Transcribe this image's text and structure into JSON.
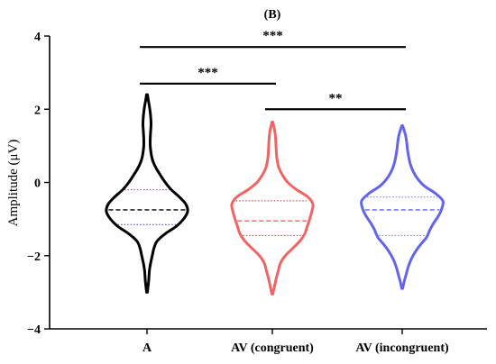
{
  "chart_data": {
    "type": "violin",
    "panel_label": "(B)",
    "ylabel": "Amplitude (μV)",
    "ylim": [
      -4,
      4
    ],
    "yticks": [
      -4,
      -2,
      0,
      2,
      4
    ],
    "categories": [
      "A",
      "AV (congruent)",
      "AV (incongruent)"
    ],
    "series": [
      {
        "color": "#000000",
        "min": -3.0,
        "max": 2.4,
        "q1": -1.15,
        "median": -0.75,
        "q3": -0.2,
        "density": [
          [
            -3.0,
            0.01
          ],
          [
            -2.7,
            0.04
          ],
          [
            -2.4,
            0.06
          ],
          [
            -2.2,
            0.09
          ],
          [
            -2.0,
            0.13
          ],
          [
            -1.8,
            0.17
          ],
          [
            -1.6,
            0.25
          ],
          [
            -1.4,
            0.45
          ],
          [
            -1.2,
            0.72
          ],
          [
            -1.0,
            0.9
          ],
          [
            -0.8,
            1.0
          ],
          [
            -0.6,
            0.96
          ],
          [
            -0.4,
            0.8
          ],
          [
            -0.2,
            0.6
          ],
          [
            0.0,
            0.45
          ],
          [
            0.2,
            0.33
          ],
          [
            0.4,
            0.22
          ],
          [
            0.6,
            0.14
          ],
          [
            0.8,
            0.1
          ],
          [
            1.0,
            0.08
          ],
          [
            1.2,
            0.08
          ],
          [
            1.4,
            0.09
          ],
          [
            1.6,
            0.1
          ],
          [
            1.8,
            0.09
          ],
          [
            2.0,
            0.07
          ],
          [
            2.2,
            0.04
          ],
          [
            2.4,
            0.01
          ]
        ]
      },
      {
        "color": "#f26464",
        "min": -3.05,
        "max": 1.65,
        "q1": -1.45,
        "median": -1.05,
        "q3": -0.5,
        "density": [
          [
            -3.05,
            0.01
          ],
          [
            -2.8,
            0.06
          ],
          [
            -2.6,
            0.1
          ],
          [
            -2.4,
            0.15
          ],
          [
            -2.2,
            0.2
          ],
          [
            -2.0,
            0.32
          ],
          [
            -1.8,
            0.5
          ],
          [
            -1.6,
            0.68
          ],
          [
            -1.4,
            0.8
          ],
          [
            -1.2,
            0.86
          ],
          [
            -1.0,
            0.92
          ],
          [
            -0.8,
            0.97
          ],
          [
            -0.6,
            1.0
          ],
          [
            -0.4,
            0.88
          ],
          [
            -0.2,
            0.6
          ],
          [
            0.0,
            0.38
          ],
          [
            0.2,
            0.25
          ],
          [
            0.4,
            0.16
          ],
          [
            0.6,
            0.12
          ],
          [
            0.8,
            0.1
          ],
          [
            1.0,
            0.09
          ],
          [
            1.2,
            0.08
          ],
          [
            1.4,
            0.06
          ],
          [
            1.65,
            0.01
          ]
        ]
      },
      {
        "color": "#6464e8",
        "min": -2.9,
        "max": 1.55,
        "q1": -1.45,
        "median": -0.75,
        "q3": -0.4,
        "density": [
          [
            -2.9,
            0.01
          ],
          [
            -2.7,
            0.05
          ],
          [
            -2.5,
            0.1
          ],
          [
            -2.3,
            0.15
          ],
          [
            -2.1,
            0.22
          ],
          [
            -1.9,
            0.32
          ],
          [
            -1.7,
            0.45
          ],
          [
            -1.5,
            0.6
          ],
          [
            -1.3,
            0.68
          ],
          [
            -1.1,
            0.78
          ],
          [
            -0.9,
            0.9
          ],
          [
            -0.7,
            0.98
          ],
          [
            -0.5,
            1.0
          ],
          [
            -0.3,
            0.82
          ],
          [
            -0.1,
            0.55
          ],
          [
            0.1,
            0.38
          ],
          [
            0.3,
            0.27
          ],
          [
            0.5,
            0.2
          ],
          [
            0.7,
            0.16
          ],
          [
            0.9,
            0.13
          ],
          [
            1.1,
            0.11
          ],
          [
            1.3,
            0.08
          ],
          [
            1.55,
            0.01
          ]
        ]
      }
    ],
    "comparisons": [
      {
        "from": 0,
        "to": 2,
        "label": "***",
        "level": 3.7
      },
      {
        "from": 0,
        "to": 1,
        "label": "***",
        "level": 2.7
      },
      {
        "from": 1,
        "to": 2,
        "label": "**",
        "level": 2.0
      }
    ]
  }
}
